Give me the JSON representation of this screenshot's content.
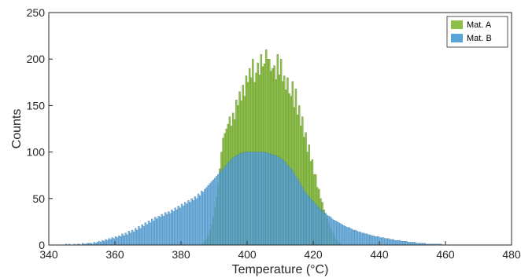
{
  "chart_data": {
    "type": "bar",
    "subtype": "overlapping-histogram",
    "title": "",
    "xlabel": "Temperature (°C)",
    "ylabel": "Counts",
    "xlim": [
      340,
      480
    ],
    "ylim": [
      0,
      250
    ],
    "x_ticks": [
      340,
      360,
      380,
      400,
      420,
      440,
      460,
      480
    ],
    "y_ticks": [
      0,
      50,
      100,
      150,
      200,
      250
    ],
    "grid": false,
    "legend_position": "top-right",
    "bin_width": 0.5,
    "series": [
      {
        "name": "Mat. A",
        "color": "#8DBF4A",
        "x_start": 386,
        "values": [
          0,
          2,
          4,
          7,
          10,
          16,
          22,
          30,
          40,
          52,
          66,
          82,
          100,
          115,
          120,
          125,
          130,
          138,
          128,
          142,
          135,
          156,
          150,
          165,
          155,
          172,
          160,
          182,
          175,
          190,
          180,
          200,
          175,
          185,
          196,
          183,
          205,
          192,
          195,
          210,
          200,
          200,
          187,
          190,
          193,
          178,
          205,
          183,
          200,
          176,
          182,
          167,
          180,
          163,
          160,
          176,
          148,
          168,
          140,
          150,
          128,
          138,
          116,
          121,
          100,
          108,
          90,
          92,
          76,
          76,
          62,
          60,
          50,
          46,
          38,
          34,
          28,
          23,
          18,
          14,
          10,
          7,
          5,
          3,
          2,
          0
        ]
      },
      {
        "name": "Mat. B",
        "color": "#5AA3D9",
        "x_start": 345,
        "values": [
          1,
          0,
          1,
          0,
          0,
          1,
          0,
          1,
          1,
          0,
          2,
          1,
          1,
          2,
          2,
          2,
          1,
          3,
          2,
          3,
          4,
          3,
          5,
          4,
          6,
          5,
          7,
          6,
          8,
          7,
          9,
          8,
          10,
          9,
          12,
          10,
          13,
          11,
          15,
          13,
          16,
          14,
          18,
          16,
          20,
          18,
          22,
          20,
          24,
          22,
          26,
          24,
          28,
          26,
          30,
          28,
          31,
          30,
          33,
          31,
          35,
          33,
          36,
          34,
          38,
          36,
          40,
          38,
          42,
          40,
          44,
          42,
          46,
          44,
          48,
          46,
          50,
          48,
          52,
          50,
          55,
          53,
          58,
          57,
          60,
          62,
          64,
          66,
          68,
          70,
          72,
          74,
          76,
          78,
          80,
          82,
          84,
          86,
          88,
          90,
          92,
          94,
          95,
          96,
          97,
          98,
          99,
          99,
          100,
          100,
          100,
          100,
          100,
          100,
          100,
          100,
          100,
          100,
          100,
          100,
          100,
          99,
          99,
          98,
          98,
          97,
          97,
          96,
          95,
          94,
          93,
          92,
          90,
          88,
          86,
          84,
          82,
          80,
          77,
          74,
          71,
          68,
          65,
          62,
          59,
          56,
          54,
          52,
          50,
          48,
          46,
          44,
          42,
          40,
          38,
          37,
          35,
          34,
          32,
          31,
          30,
          28,
          27,
          26,
          25,
          24,
          23,
          22,
          21,
          20,
          19,
          19,
          18,
          17,
          16,
          16,
          15,
          14,
          14,
          13,
          13,
          12,
          12,
          11,
          11,
          10,
          10,
          9,
          9,
          9,
          8,
          8,
          8,
          7,
          7,
          7,
          6,
          6,
          6,
          5,
          5,
          5,
          5,
          4,
          4,
          4,
          4,
          3,
          3,
          3,
          3,
          3,
          2,
          2,
          2,
          2,
          2,
          2,
          1,
          1,
          1,
          1,
          1,
          1,
          1,
          1,
          1,
          1,
          0,
          0,
          0,
          0,
          0,
          0,
          0,
          0,
          0,
          0,
          0,
          0,
          0,
          0,
          0,
          0,
          0,
          0,
          0,
          0,
          0,
          0
        ]
      }
    ]
  }
}
